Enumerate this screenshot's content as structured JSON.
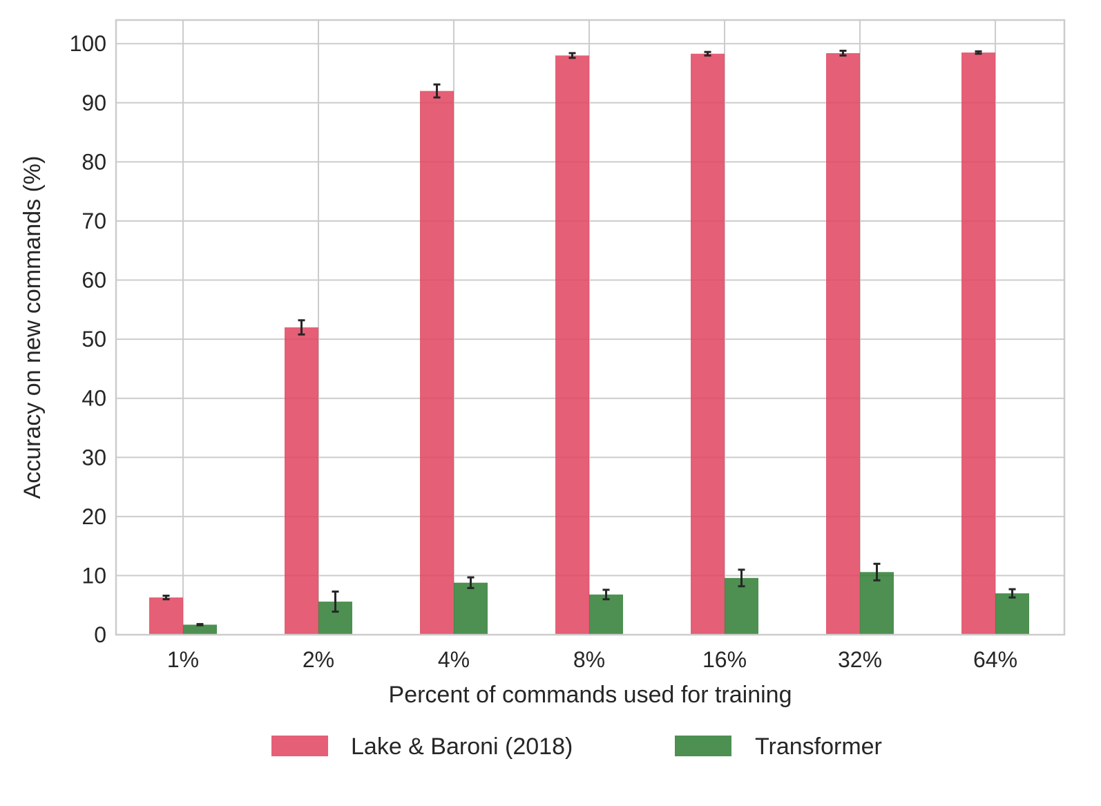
{
  "chart_data": {
    "type": "bar",
    "title": "",
    "xlabel": "Percent of commands used for training",
    "ylabel": "Accuracy on new commands (%)",
    "ylim": [
      0,
      104
    ],
    "yticks": [
      0,
      10,
      20,
      30,
      40,
      50,
      60,
      70,
      80,
      90,
      100
    ],
    "categories": [
      "1%",
      "2%",
      "4%",
      "8%",
      "16%",
      "32%",
      "64%"
    ],
    "grid": true,
    "legend": "bottom-center",
    "series": [
      {
        "name": "Lake & Baroni (2018)",
        "color": "#e0435e",
        "values": [
          6.3,
          52.0,
          92.0,
          98.0,
          98.3,
          98.4,
          98.5
        ],
        "errors": [
          0.3,
          1.2,
          1.1,
          0.4,
          0.3,
          0.4,
          0.2
        ]
      },
      {
        "name": "Transformer",
        "color": "#2e7d32",
        "values": [
          1.7,
          5.6,
          8.8,
          6.8,
          9.6,
          10.6,
          7.0
        ],
        "errors": [
          0.1,
          1.7,
          0.9,
          0.8,
          1.4,
          1.4,
          0.7
        ]
      }
    ]
  }
}
